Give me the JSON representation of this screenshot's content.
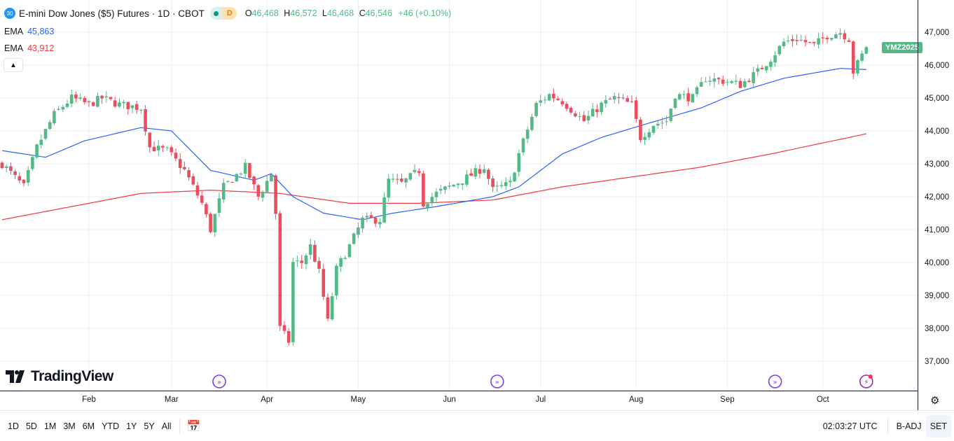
{
  "header": {
    "symbol_badge": "30",
    "title": "E-mini Dow Jones ($5) Futures · 1D · CBOT",
    "status_badge": "D",
    "ohlc": {
      "o_label": "O",
      "o": "46,468",
      "h_label": "H",
      "h": "46,572",
      "l_label": "L",
      "l": "46,468",
      "c_label": "C",
      "c": "46,546",
      "change": "+46 (+0.10%)"
    }
  },
  "indicators": [
    {
      "name": "EMA",
      "value": "45,863",
      "color": "#2962ff"
    },
    {
      "name": "EMA",
      "value": "43,912",
      "color": "#f23645"
    }
  ],
  "collapse_icon": "chevron-up-icon",
  "logo": "TradingView",
  "price_label": "YMZ2025",
  "colors": {
    "up": "#53b987",
    "down": "#eb4d5c",
    "ema_fast": "#2962ff",
    "ema_slow": "#f23645",
    "grid": "#e9eef5"
  },
  "chart_data": {
    "type": "candlestick",
    "symbol": "YMZ2025",
    "bar_count": 200,
    "ylim": [
      36500,
      47500
    ],
    "y_ticks": [
      "47,000",
      "46,000",
      "45,000",
      "44,000",
      "43,000",
      "42,000",
      "41,000",
      "40,000",
      "39,000",
      "38,000",
      "37,000"
    ],
    "y_tick_values": [
      47000,
      46000,
      45000,
      44000,
      43000,
      42000,
      41000,
      40000,
      39000,
      38000,
      37000
    ],
    "x_ticks": [
      {
        "label": "Feb",
        "bar": 20
      },
      {
        "label": "Mar",
        "bar": 39
      },
      {
        "label": "Apr",
        "bar": 61
      },
      {
        "label": "May",
        "bar": 82
      },
      {
        "label": "Jun",
        "bar": 103
      },
      {
        "label": "Jul",
        "bar": 124
      },
      {
        "label": "Aug",
        "bar": 146
      },
      {
        "label": "Sep",
        "bar": 167
      },
      {
        "label": "Oct",
        "bar": 189
      }
    ],
    "close_waypoints": [
      [
        0,
        43000
      ],
      [
        5,
        42300
      ],
      [
        8,
        43500
      ],
      [
        12,
        44500
      ],
      [
        16,
        45000
      ],
      [
        20,
        44800
      ],
      [
        23,
        45000
      ],
      [
        27,
        44800
      ],
      [
        32,
        44700
      ],
      [
        34,
        43500
      ],
      [
        38,
        43400
      ],
      [
        42,
        42800
      ],
      [
        46,
        41800
      ],
      [
        48,
        41000
      ],
      [
        51,
        42300
      ],
      [
        56,
        42900
      ],
      [
        59,
        42000
      ],
      [
        62,
        42700
      ],
      [
        63,
        41500
      ],
      [
        64,
        38000
      ],
      [
        66,
        37600
      ],
      [
        67,
        40000
      ],
      [
        69,
        40000
      ],
      [
        71,
        40500
      ],
      [
        73,
        39700
      ],
      [
        75,
        38200
      ],
      [
        77,
        39800
      ],
      [
        80,
        40500
      ],
      [
        83,
        41300
      ],
      [
        87,
        41300
      ],
      [
        89,
        42500
      ],
      [
        92,
        42400
      ],
      [
        96,
        42800
      ],
      [
        97,
        41800
      ],
      [
        100,
        42100
      ],
      [
        103,
        42300
      ],
      [
        106,
        42500
      ],
      [
        111,
        42900
      ],
      [
        113,
        42200
      ],
      [
        117,
        42400
      ],
      [
        119,
        43300
      ],
      [
        123,
        44800
      ],
      [
        126,
        45100
      ],
      [
        129,
        44900
      ],
      [
        134,
        44300
      ],
      [
        138,
        44800
      ],
      [
        141,
        45000
      ],
      [
        145,
        44800
      ],
      [
        147,
        43800
      ],
      [
        150,
        44200
      ],
      [
        153,
        44300
      ],
      [
        155,
        45100
      ],
      [
        159,
        45000
      ],
      [
        162,
        45600
      ],
      [
        167,
        45500
      ],
      [
        170,
        45400
      ],
      [
        174,
        45800
      ],
      [
        177,
        46200
      ],
      [
        180,
        46700
      ],
      [
        183,
        46800
      ],
      [
        187,
        46600
      ],
      [
        190,
        46900
      ],
      [
        193,
        47000
      ],
      [
        195,
        46800
      ],
      [
        196,
        45800
      ],
      [
        198,
        46300
      ],
      [
        199,
        46546
      ]
    ],
    "ema_fast_waypoints": [
      [
        0,
        43400
      ],
      [
        10,
        43200
      ],
      [
        19,
        43700
      ],
      [
        32,
        44100
      ],
      [
        39,
        44000
      ],
      [
        48,
        42800
      ],
      [
        58,
        42500
      ],
      [
        62,
        42700
      ],
      [
        67,
        42000
      ],
      [
        74,
        41500
      ],
      [
        83,
        41300
      ],
      [
        90,
        41500
      ],
      [
        100,
        41700
      ],
      [
        113,
        42000
      ],
      [
        119,
        42300
      ],
      [
        129,
        43300
      ],
      [
        138,
        43800
      ],
      [
        148,
        44200
      ],
      [
        161,
        44700
      ],
      [
        170,
        45200
      ],
      [
        180,
        45600
      ],
      [
        193,
        45900
      ],
      [
        199,
        45863
      ]
    ],
    "ema_slow_waypoints": [
      [
        0,
        41300
      ],
      [
        16,
        41700
      ],
      [
        32,
        42100
      ],
      [
        48,
        42200
      ],
      [
        64,
        42100
      ],
      [
        80,
        41800
      ],
      [
        96,
        41800
      ],
      [
        113,
        41900
      ],
      [
        129,
        42300
      ],
      [
        145,
        42600
      ],
      [
        161,
        42900
      ],
      [
        177,
        43300
      ],
      [
        199,
        43912
      ]
    ],
    "event_markers": [
      {
        "bar": 50,
        "icon": "dividend-icon"
      },
      {
        "bar": 114,
        "icon": "dividend-icon"
      },
      {
        "bar": 178,
        "icon": "dividend-icon"
      },
      {
        "bar": 199,
        "icon": "lightning-icon"
      }
    ]
  },
  "toolbar": {
    "ranges": [
      "1D",
      "5D",
      "1M",
      "3M",
      "6M",
      "YTD",
      "1Y",
      "5Y",
      "All"
    ],
    "time": "02:03:27 UTC",
    "adj": "B-ADJ",
    "session": "SET"
  }
}
